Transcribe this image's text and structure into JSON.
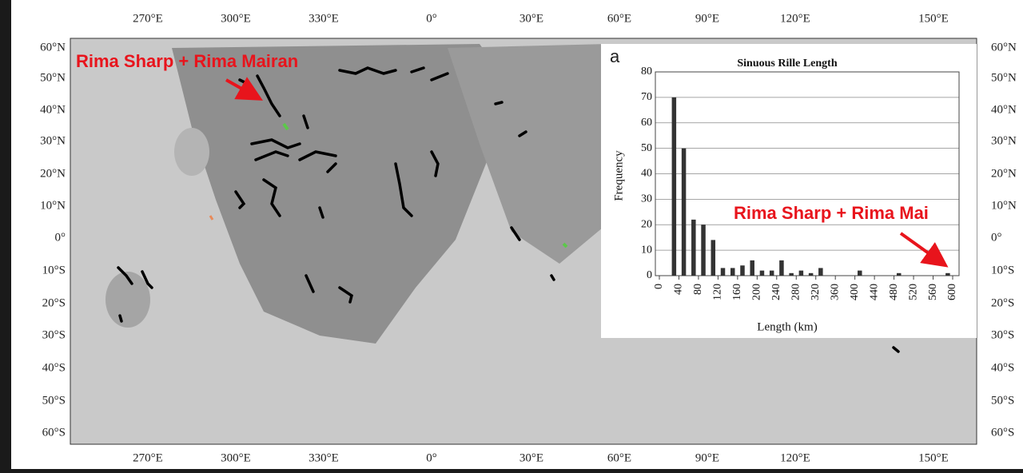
{
  "map": {
    "top_labels": [
      "270°E",
      "300°E",
      "330°E",
      "0°",
      "30°E",
      "60°E",
      "90°E",
      "120°E",
      "150°E"
    ],
    "bottom_labels": [
      "270°E",
      "300°E",
      "330°E",
      "0°",
      "30°E",
      "60°E",
      "90°E",
      "120°E",
      "150°E"
    ],
    "left_labels": [
      "60°N",
      "50°N",
      "40°N",
      "30°N",
      "20°N",
      "10°N",
      "0°",
      "10°S",
      "20°S",
      "30°S",
      "40°S",
      "50°S",
      "60°S"
    ],
    "right_labels": [
      "60°N",
      "50°N",
      "40°N",
      "30°N",
      "20°N",
      "10°N",
      "0°",
      "10°S",
      "20°S",
      "30°S",
      "40°S",
      "50°S",
      "60°S"
    ],
    "annotations": [
      "Rima Sharp + Rima Mairan",
      "Rima Sharp + Rima Mai"
    ]
  },
  "chart_data": {
    "type": "histogram",
    "panel_label": "a",
    "title": "Sinuous Rille Length",
    "xlabel": "Length (km)",
    "ylabel": "Frequency",
    "bins": [
      0,
      20,
      40,
      60,
      80,
      100,
      120,
      140,
      160,
      180,
      200,
      220,
      240,
      260,
      280,
      300,
      320,
      340,
      360,
      380,
      400,
      420,
      440,
      460,
      480,
      500,
      520,
      540,
      560,
      580,
      600
    ],
    "counts": [
      0,
      70,
      50,
      22,
      20,
      14,
      3,
      3,
      4,
      6,
      2,
      2,
      6,
      1,
      2,
      1,
      3,
      0,
      0,
      0,
      2,
      0,
      0,
      0,
      1,
      0,
      0,
      0,
      0,
      1
    ],
    "color": "#333333",
    "xlim": [
      0,
      600
    ],
    "ylim": [
      0,
      80
    ],
    "xticks": [
      0,
      40,
      80,
      120,
      160,
      200,
      240,
      280,
      320,
      360,
      400,
      440,
      480,
      520,
      560,
      600
    ],
    "yticks": [
      0,
      10,
      20,
      30,
      40,
      50,
      60,
      70,
      80
    ],
    "grid": true
  }
}
